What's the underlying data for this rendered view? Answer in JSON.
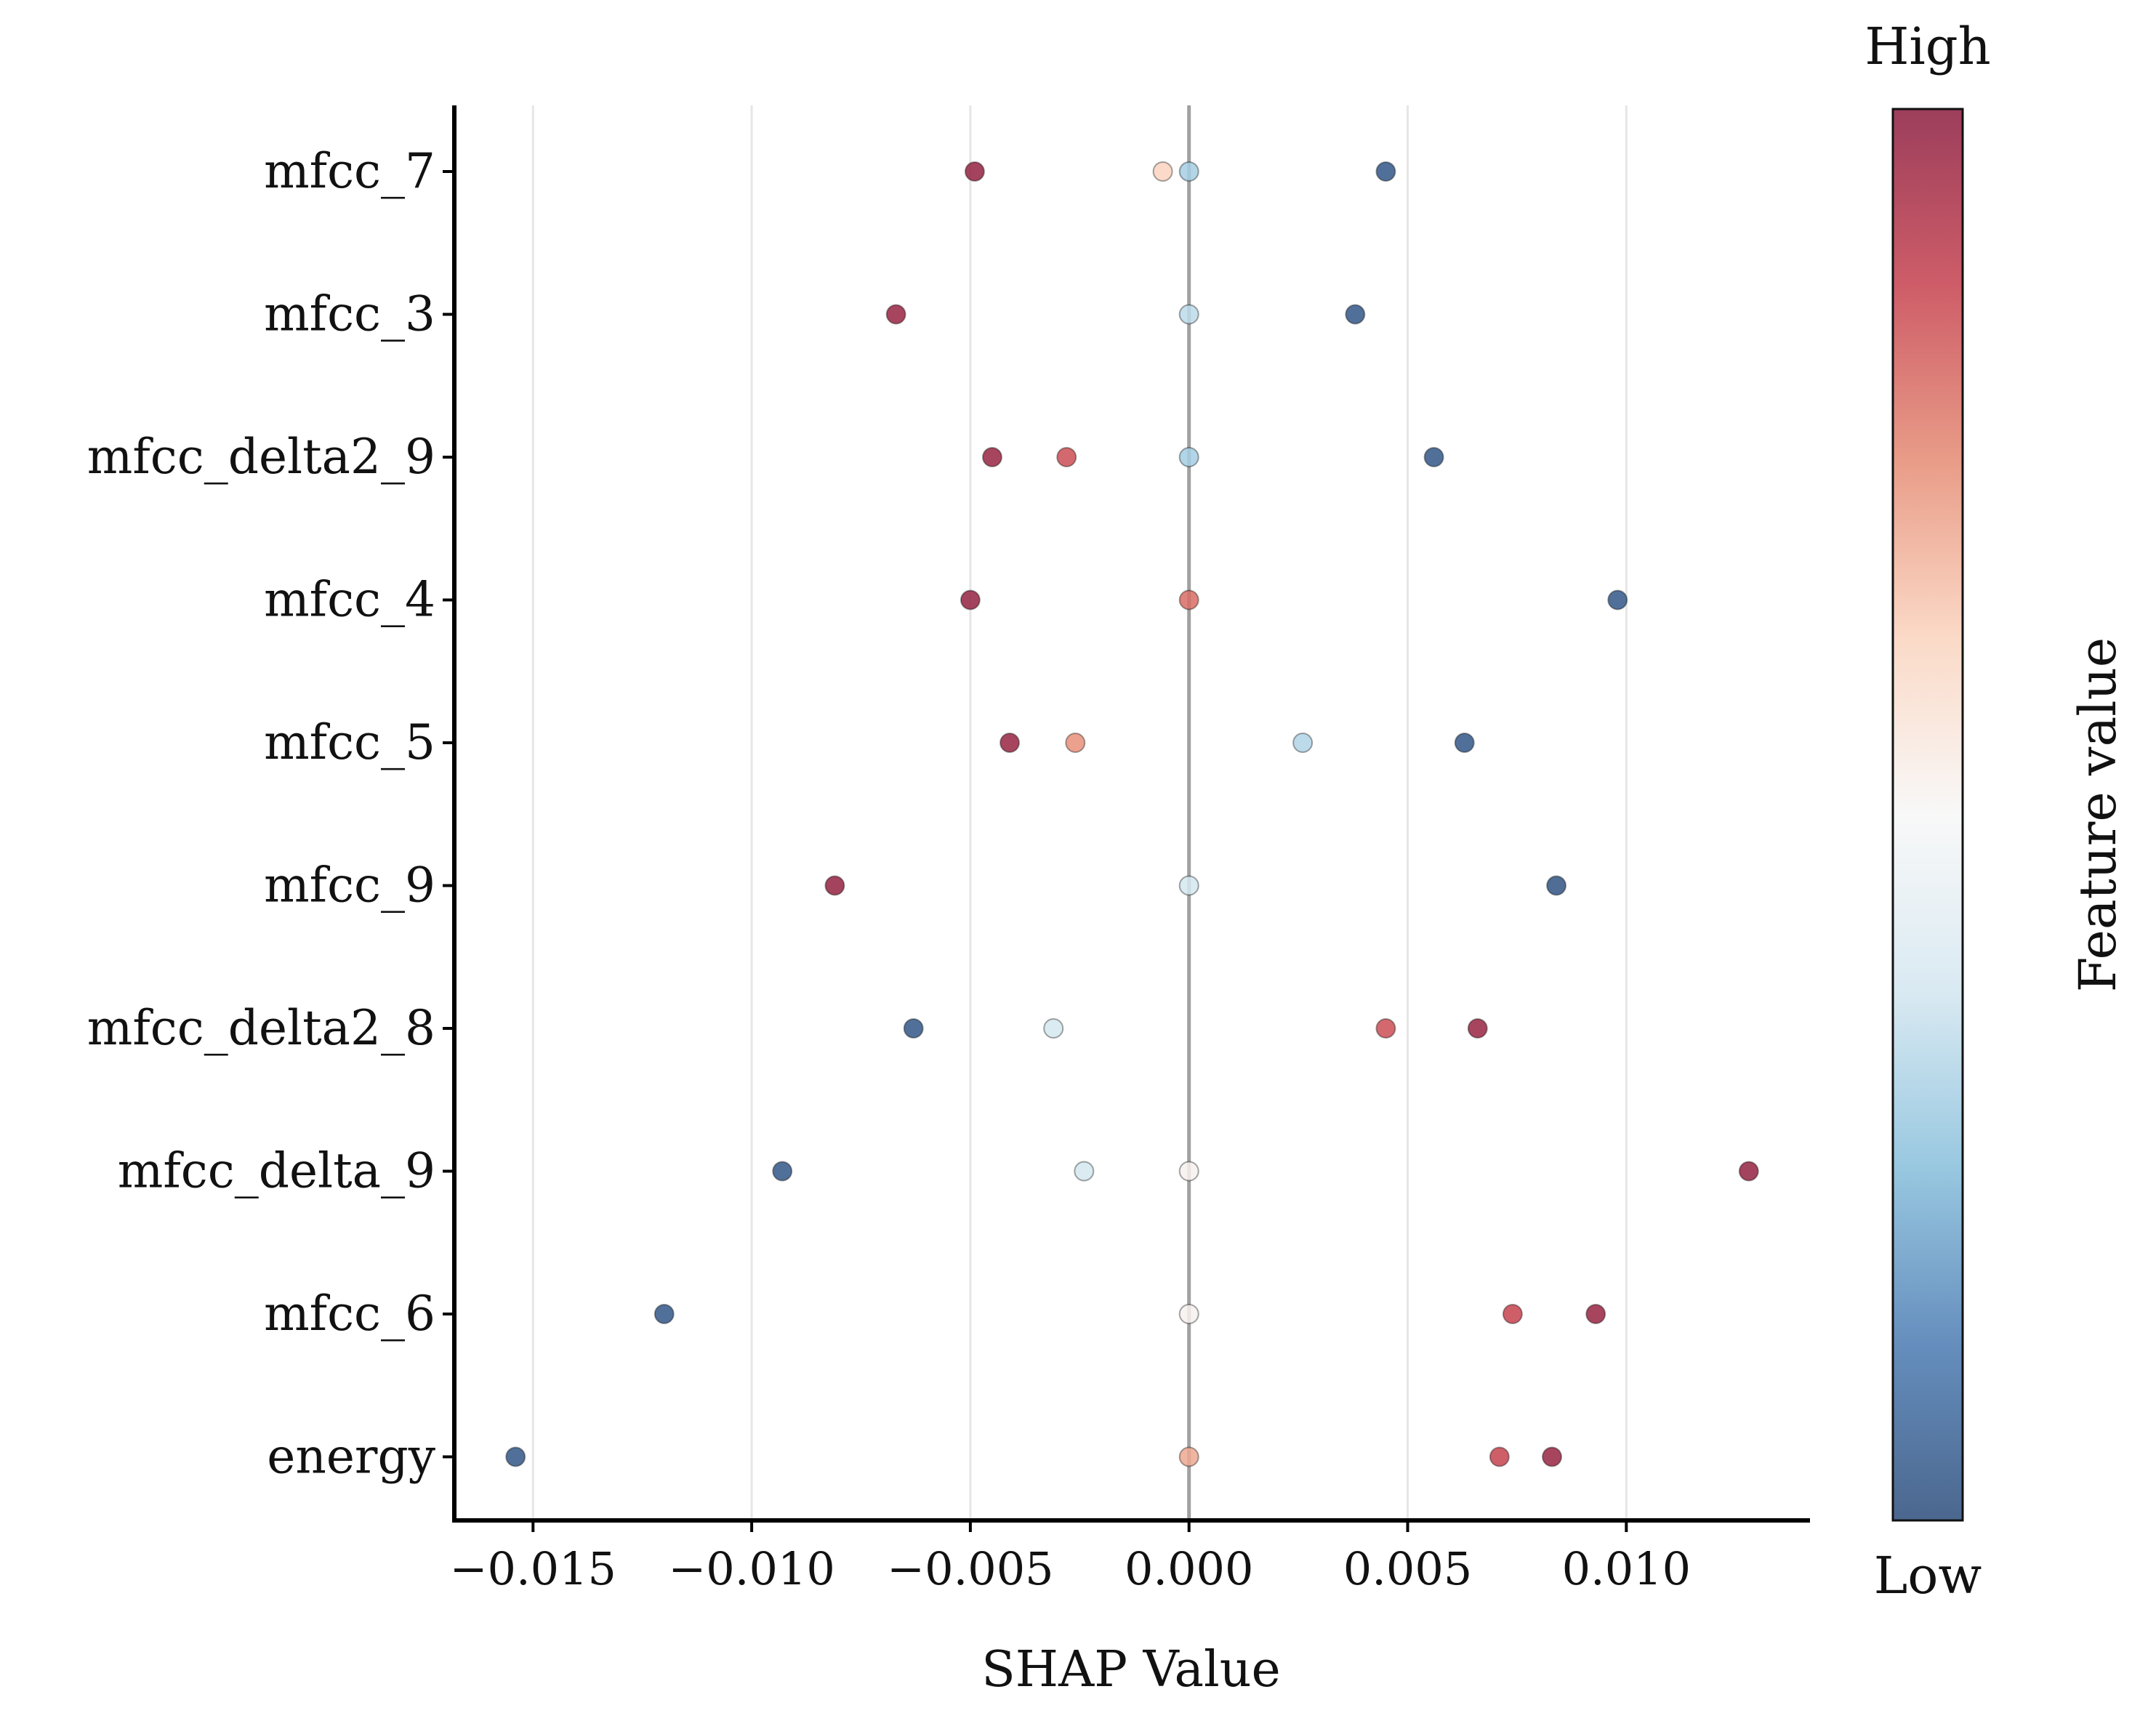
{
  "chart_data": {
    "type": "scatter",
    "title": "",
    "xlabel": "SHAP Value",
    "ylabel": "",
    "xlim": [
      -0.0168,
      0.0142
    ],
    "xticks": [
      -0.015,
      -0.01,
      -0.005,
      0.0,
      0.005,
      0.01
    ],
    "xtick_labels": [
      "−0.015",
      "−0.010",
      "−0.005",
      "0.000",
      "0.005",
      "0.010"
    ],
    "grid": "vertical",
    "zero_line": true,
    "features": [
      "mfcc_7",
      "mfcc_3",
      "mfcc_delta2_9",
      "mfcc_4",
      "mfcc_5",
      "mfcc_9",
      "mfcc_delta2_8",
      "mfcc_delta_9",
      "mfcc_6",
      "energy"
    ],
    "points": [
      {
        "feature": "mfcc_7",
        "shap": -0.0049,
        "value": 0.98
      },
      {
        "feature": "mfcc_7",
        "shap": -0.0006,
        "value": 0.62
      },
      {
        "feature": "mfcc_7",
        "shap": 0.0,
        "value": 0.3
      },
      {
        "feature": "mfcc_7",
        "shap": 0.0045,
        "value": 0.03
      },
      {
        "feature": "mfcc_3",
        "shap": -0.0067,
        "value": 0.97
      },
      {
        "feature": "mfcc_3",
        "shap": 0.0,
        "value": 0.34
      },
      {
        "feature": "mfcc_3",
        "shap": 0.0038,
        "value": 0.03
      },
      {
        "feature": "mfcc_delta2_9",
        "shap": -0.0045,
        "value": 0.97
      },
      {
        "feature": "mfcc_delta2_9",
        "shap": -0.0028,
        "value": 0.85
      },
      {
        "feature": "mfcc_delta2_9",
        "shap": 0.0,
        "value": 0.3
      },
      {
        "feature": "mfcc_delta2_9",
        "shap": 0.0056,
        "value": 0.03
      },
      {
        "feature": "mfcc_4",
        "shap": -0.005,
        "value": 0.98
      },
      {
        "feature": "mfcc_4",
        "shap": 0.0,
        "value": 0.8
      },
      {
        "feature": "mfcc_4",
        "shap": 0.0098,
        "value": 0.03
      },
      {
        "feature": "mfcc_5",
        "shap": -0.0041,
        "value": 0.97
      },
      {
        "feature": "mfcc_5",
        "shap": -0.0026,
        "value": 0.74
      },
      {
        "feature": "mfcc_5",
        "shap": 0.0026,
        "value": 0.32
      },
      {
        "feature": "mfcc_5",
        "shap": 0.0063,
        "value": 0.03
      },
      {
        "feature": "mfcc_9",
        "shap": -0.0081,
        "value": 0.98
      },
      {
        "feature": "mfcc_9",
        "shap": 0.0,
        "value": 0.38
      },
      {
        "feature": "mfcc_9",
        "shap": 0.0084,
        "value": 0.02
      },
      {
        "feature": "mfcc_delta2_8",
        "shap": -0.0063,
        "value": 0.03
      },
      {
        "feature": "mfcc_delta2_8",
        "shap": -0.0031,
        "value": 0.38
      },
      {
        "feature": "mfcc_delta2_8",
        "shap": 0.0045,
        "value": 0.85
      },
      {
        "feature": "mfcc_delta2_8",
        "shap": 0.0066,
        "value": 0.97
      },
      {
        "feature": "mfcc_delta_9",
        "shap": -0.0093,
        "value": 0.03
      },
      {
        "feature": "mfcc_delta_9",
        "shap": -0.0024,
        "value": 0.38
      },
      {
        "feature": "mfcc_delta_9",
        "shap": 0.0,
        "value": 0.52
      },
      {
        "feature": "mfcc_delta_9",
        "shap": 0.0128,
        "value": 0.98
      },
      {
        "feature": "mfcc_6",
        "shap": -0.012,
        "value": 0.03
      },
      {
        "feature": "mfcc_6",
        "shap": 0.0,
        "value": 0.52
      },
      {
        "feature": "mfcc_6",
        "shap": 0.0074,
        "value": 0.87
      },
      {
        "feature": "mfcc_6",
        "shap": 0.0093,
        "value": 0.97
      },
      {
        "feature": "energy",
        "shap": -0.0154,
        "value": 0.03
      },
      {
        "feature": "energy",
        "shap": 0.0,
        "value": 0.7
      },
      {
        "feature": "energy",
        "shap": 0.0071,
        "value": 0.87
      },
      {
        "feature": "energy",
        "shap": 0.0083,
        "value": 0.97
      }
    ],
    "colorbar": {
      "label": "Feature value",
      "high_label": "High",
      "low_label": "Low",
      "colormap": [
        "#2b4c7a",
        "#4a7ab2",
        "#86bedb",
        "#d3e6f0",
        "#f7f7f7",
        "#fad3bd",
        "#e58b73",
        "#c5404d",
        "#8b1c3f"
      ]
    },
    "colors": {
      "zero_line": "#a0a0a0",
      "grid": "#e6e6e6",
      "axis": "#000000"
    }
  }
}
